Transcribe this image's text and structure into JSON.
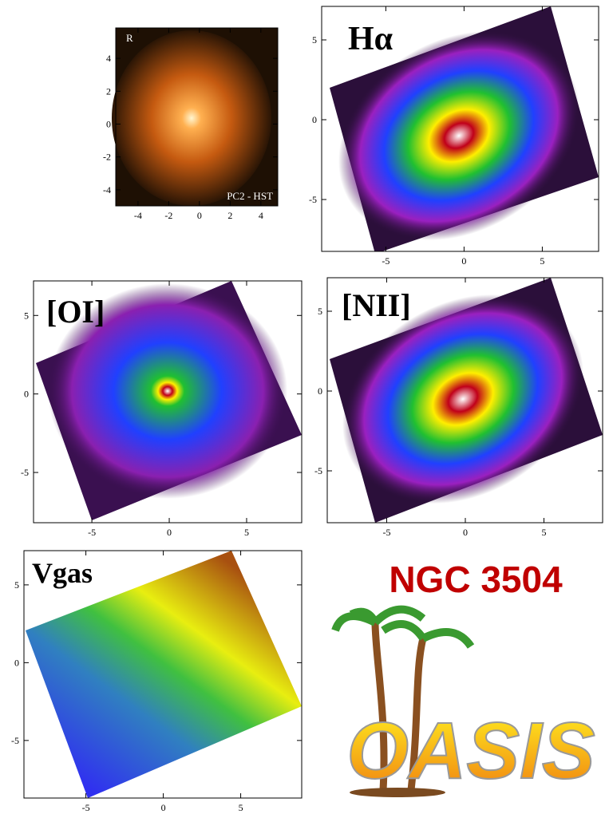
{
  "title": "NGC 3504",
  "logo": "OASIS",
  "panels": [
    {
      "label": "R",
      "note": "PC2 - HST",
      "xlim": [
        -5.45,
        5.1
      ],
      "ylim": [
        -4.98,
        5.85
      ],
      "xticks": [
        -4,
        -2,
        0,
        2,
        4
      ],
      "yticks": [
        -4,
        -2,
        0,
        2,
        4
      ]
    },
    {
      "label": "Hα",
      "xlim": [
        -9.1,
        8.6
      ],
      "ylim": [
        -8.25,
        7.1
      ],
      "xticks": [
        -5,
        0,
        5
      ],
      "yticks": [
        -5,
        0,
        5
      ]
    },
    {
      "label": "[OI]",
      "xlim": [
        -8.77,
        8.56
      ],
      "ylim": [
        -8.2,
        7.2
      ],
      "xticks": [
        -5,
        0,
        5
      ],
      "yticks": [
        -5,
        0,
        5
      ]
    },
    {
      "label": "[NII]",
      "xlim": [
        -8.78,
        8.73
      ],
      "ylim": [
        -8.25,
        7.1
      ],
      "xticks": [
        -5,
        0,
        5
      ],
      "yticks": [
        -5,
        0,
        5
      ]
    },
    {
      "label": "Vgas",
      "xlim": [
        -9.0,
        8.94
      ],
      "ylim": [
        -8.7,
        7.2
      ],
      "xticks": [
        -5,
        0,
        5
      ],
      "yticks": [
        -5,
        0,
        5
      ]
    }
  ]
}
